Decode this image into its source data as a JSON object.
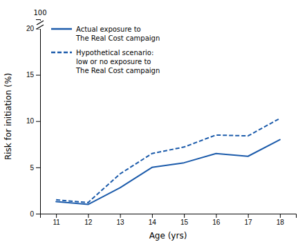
{
  "chart_data": {
    "type": "line",
    "x": [
      11,
      12,
      13,
      14,
      15,
      16,
      17,
      18
    ],
    "series": [
      {
        "name": "Actual exposure to\nThe Real Cost campaign",
        "color": "#1a5aaa",
        "line_style": "solid",
        "values": [
          1.3,
          1.0,
          2.8,
          5.0,
          5.5,
          6.5,
          6.2,
          8.0
        ]
      },
      {
        "name": "Hypothetical scenario:\nlow or no exposure to\nThe Real Cost campaign",
        "color": "#1a5aaa",
        "line_style": "dashed",
        "values": [
          1.5,
          1.2,
          4.3,
          6.5,
          7.2,
          8.5,
          8.4,
          10.3
        ]
      }
    ],
    "x_label": "Age (yrs)",
    "y_label": "Risk for initiation (%)",
    "xlim": [
      10.5,
      18.5
    ],
    "xticks": [
      11,
      12,
      13,
      14,
      15,
      16,
      17,
      18
    ],
    "ylim": [
      0,
      21
    ],
    "yticks": [
      0,
      5,
      10,
      15,
      20
    ],
    "annotations": [
      "100"
    ],
    "legend": "upper left",
    "grid": false
  }
}
